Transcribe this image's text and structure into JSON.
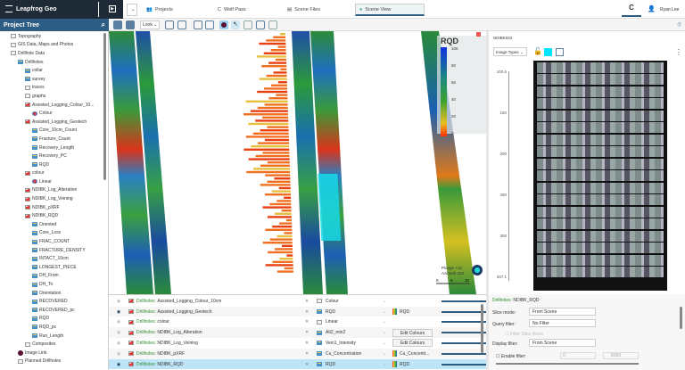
{
  "app": {
    "brand": "Leapfrog Geo",
    "user": "Ryan Lee"
  },
  "tabs": [
    {
      "label": "Projects"
    },
    {
      "label": "Wolf Pass"
    },
    {
      "label": "Scene Files"
    },
    {
      "label": "Scene View"
    }
  ],
  "tree": {
    "title": "Project Tree",
    "items": [
      {
        "label": "Topography",
        "depth": 1,
        "icon": "folder"
      },
      {
        "label": "GIS Data, Maps and Photos",
        "depth": 1,
        "icon": "folder"
      },
      {
        "label": "Drillhole Data",
        "depth": 1,
        "icon": "folder"
      },
      {
        "label": "Drillholes",
        "depth": 2,
        "icon": "table"
      },
      {
        "label": "collar",
        "depth": 3,
        "icon": "table"
      },
      {
        "label": "survey",
        "depth": 3,
        "icon": "table"
      },
      {
        "label": "traces",
        "depth": 3,
        "icon": "traces"
      },
      {
        "label": "graphs",
        "depth": 3,
        "icon": "graph"
      },
      {
        "label": "Assisted_Logging_Colour_10...",
        "depth": 3,
        "icon": "red"
      },
      {
        "label": "Colour",
        "depth": 4,
        "icon": "colour"
      },
      {
        "label": "Assisted_Logging_Geotech",
        "depth": 3,
        "icon": "red"
      },
      {
        "label": "Core_10cm_Count",
        "depth": 4,
        "icon": "table"
      },
      {
        "label": "Fracture_Count",
        "depth": 4,
        "icon": "table"
      },
      {
        "label": "Recovery_Length",
        "depth": 4,
        "icon": "table"
      },
      {
        "label": "Recovery_PC",
        "depth": 4,
        "icon": "table"
      },
      {
        "label": "RQD",
        "depth": 4,
        "icon": "table"
      },
      {
        "label": "colour",
        "depth": 3,
        "icon": "red"
      },
      {
        "label": "Linear",
        "depth": 4,
        "icon": "colour"
      },
      {
        "label": "NDIBK_Log_Alteration",
        "depth": 3,
        "icon": "red"
      },
      {
        "label": "NDIBK_Log_Veining",
        "depth": 3,
        "icon": "red"
      },
      {
        "label": "NDIBK_pXRF",
        "depth": 3,
        "icon": "red"
      },
      {
        "label": "NDIBK_RQD",
        "depth": 3,
        "icon": "red"
      },
      {
        "label": "Oriented",
        "depth": 4,
        "icon": "table"
      },
      {
        "label": "Core_Loss",
        "depth": 4,
        "icon": "table"
      },
      {
        "label": "FRAC_COUNT",
        "depth": 4,
        "icon": "table"
      },
      {
        "label": "FRACTURE_DENSITY",
        "depth": 4,
        "icon": "table"
      },
      {
        "label": "INTACT_10cm",
        "depth": 4,
        "icon": "table"
      },
      {
        "label": "LONGEST_PIECE",
        "depth": 4,
        "icon": "table"
      },
      {
        "label": "DH_From",
        "depth": 4,
        "icon": "table"
      },
      {
        "label": "DH_To",
        "depth": 4,
        "icon": "table"
      },
      {
        "label": "Orientation",
        "depth": 4,
        "icon": "table"
      },
      {
        "label": "RECOVERED",
        "depth": 4,
        "icon": "table"
      },
      {
        "label": "RECOVERED_pc",
        "depth": 4,
        "icon": "table"
      },
      {
        "label": "RQD",
        "depth": 4,
        "icon": "table"
      },
      {
        "label": "RQD_pc",
        "depth": 4,
        "icon": "table"
      },
      {
        "label": "Run_Length",
        "depth": 4,
        "icon": "table"
      },
      {
        "label": "Composites",
        "depth": 3,
        "icon": "folder"
      },
      {
        "label": "Image Link",
        "depth": 2,
        "icon": "imagelink"
      },
      {
        "label": "Planned Drillholes",
        "depth": 2,
        "icon": "folder"
      }
    ]
  },
  "toolbar": {
    "look_label": "Look"
  },
  "scene": {
    "legend_title": "RQD",
    "legend_ticks": [
      "100",
      "80",
      "60",
      "40",
      "20",
      "0"
    ],
    "plunge": "Plunge +12",
    "azimuth": "Azimuth 224",
    "scale": [
      "0",
      "5",
      "10"
    ]
  },
  "core": {
    "hole": "NDIBK022",
    "image_types": "Image Types",
    "axis": [
      "100.6",
      "150",
      "200",
      "250",
      "300",
      "347.1"
    ],
    "accent": "#00e5ff"
  },
  "layers": [
    {
      "prefix": "Drillholes:",
      "name": "Assisted_Logging_Colour_10cm",
      "column": "Colour",
      "legend": "",
      "visible": false
    },
    {
      "prefix": "Drillholes:",
      "name": "Assisted_Logging_Geotech",
      "column": "RQD",
      "legend": "RQD",
      "visible": true
    },
    {
      "prefix": "Drillholes:",
      "name": "colour",
      "column": "Linear",
      "legend": "",
      "visible": false
    },
    {
      "prefix": "Drillholes:",
      "name": "NDIBK_Log_Alteration",
      "column": "Alt2_min2",
      "legend": "Edit Colours",
      "visible": false
    },
    {
      "prefix": "Drillholes:",
      "name": "NDIBK_Log_Veining",
      "column": "Vein1_Intensity",
      "legend": "Edit Colours",
      "visible": false
    },
    {
      "prefix": "Drillholes:",
      "name": "NDIBK_pXRF",
      "column": "Cu_Concentration",
      "legend": "Cu_Concentr...",
      "visible": false
    },
    {
      "prefix": "Drillholes:",
      "name": "NDIBK_RQD",
      "column": "RQD",
      "legend": "RQD",
      "visible": true,
      "selected": true
    }
  ],
  "props": {
    "title_prefix": "Drillholes:",
    "title": "NDIBK_RQD",
    "slice_label": "Slice mode:",
    "slice_value": "From Scene",
    "query_label": "Query filter:",
    "query_value": "No Filter",
    "filter_slice": "Filter Slice Rows",
    "display_label": "Display filter:",
    "display_value": "From Scene",
    "enable_filter": "Enable filter:",
    "filter_min": "0",
    "filter_max": "8360"
  }
}
